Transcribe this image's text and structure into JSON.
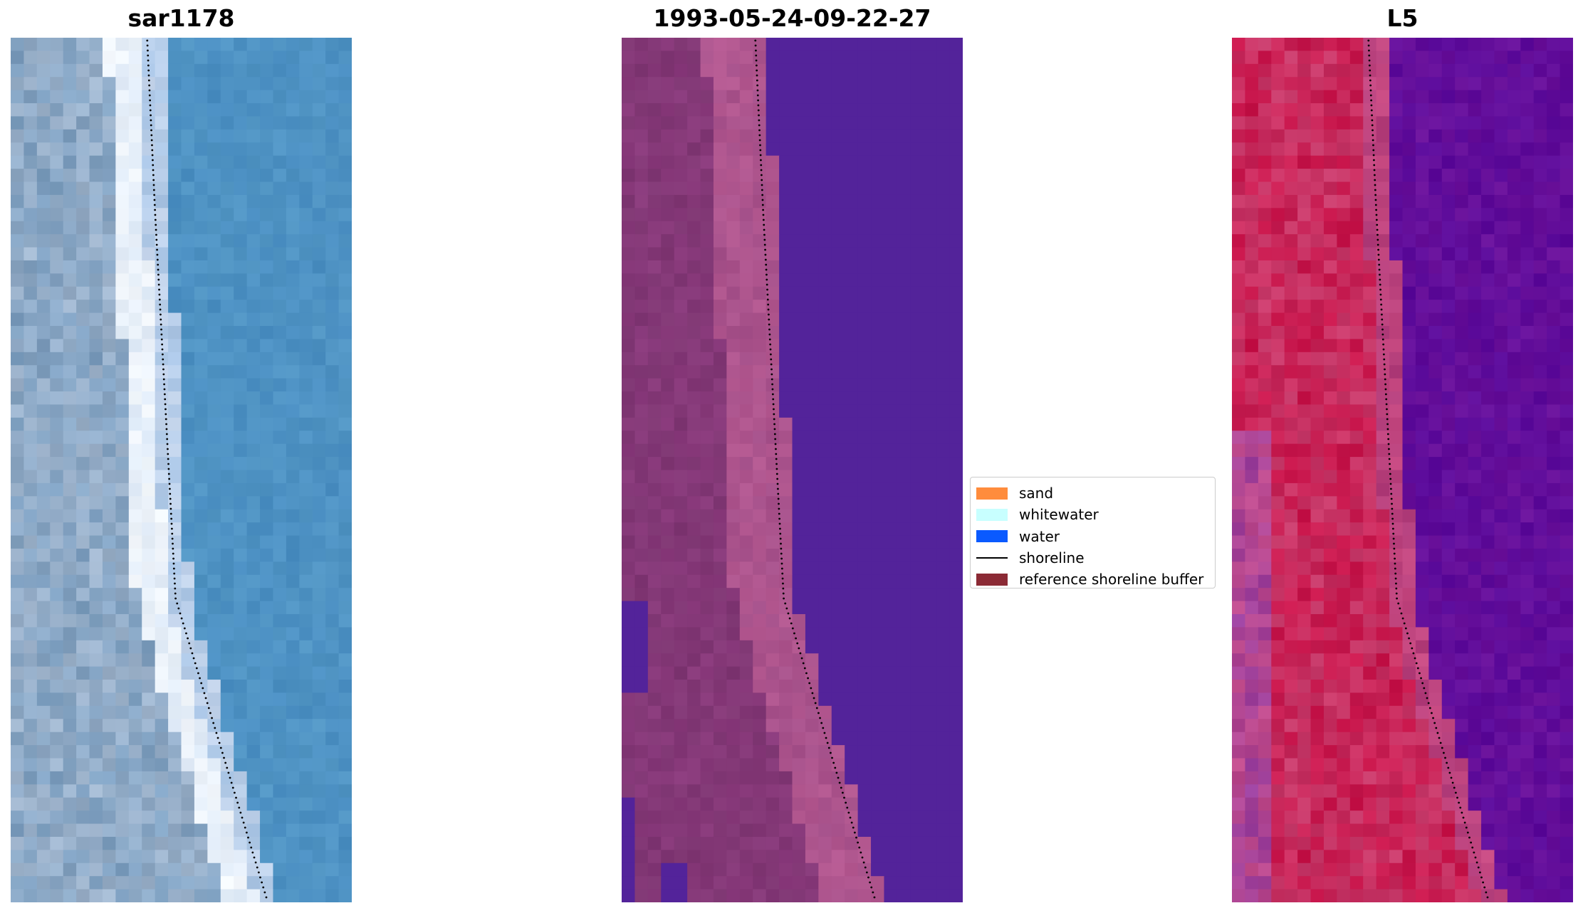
{
  "panels": [
    {
      "title": "sar1178",
      "kind": "rgb"
    },
    {
      "title": "1993-05-24-09-22-27",
      "kind": "classified"
    },
    {
      "title": "L5",
      "kind": "mndwi"
    }
  ],
  "legend": {
    "items": [
      {
        "label": "sand",
        "type": "patch",
        "color": "#ff8c3c"
      },
      {
        "label": "whitewater",
        "type": "patch",
        "color": "#c8ffff"
      },
      {
        "label": "water",
        "type": "patch",
        "color": "#0a5aff"
      },
      {
        "label": "shoreline",
        "type": "line",
        "color": "#000000"
      },
      {
        "label": "reference shoreline buffer",
        "type": "patch",
        "color": "#8b2a35"
      }
    ]
  },
  "colors": {
    "rgb_water": "#4a8ec2",
    "rgb_sand": "#7d9fc0",
    "rgb_whitewater": "#f4f8fc",
    "class_water": "#53239a",
    "class_land": "#8a3a7c",
    "class_beach": "#b45890",
    "mndwi_land": "#c8144a",
    "mndwi_water": "#6a119a",
    "mndwi_mid": "#c84a82",
    "shoreline_dots": "#000000"
  }
}
